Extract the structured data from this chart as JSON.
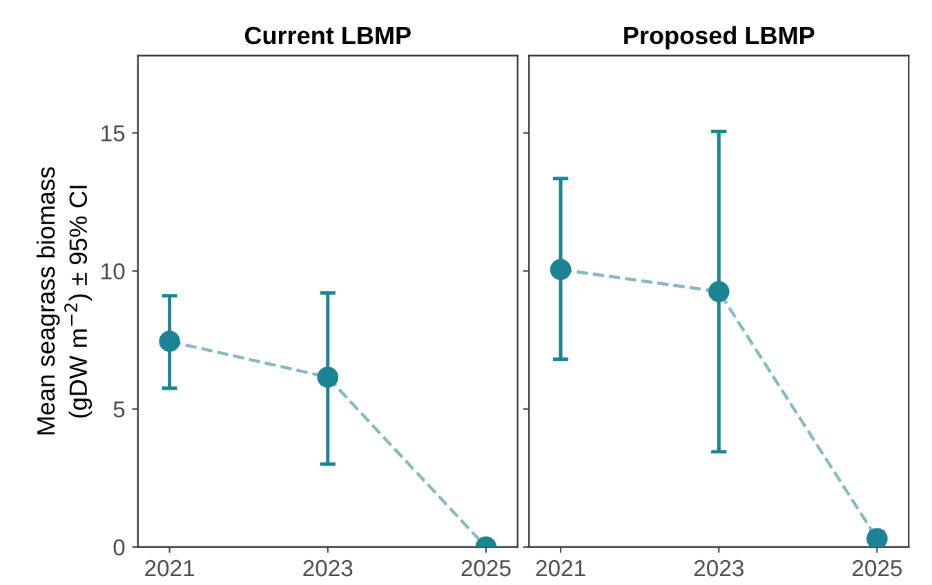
{
  "chart_data": [
    {
      "type": "line",
      "title": "Current LBMP",
      "ylabel": "Mean seagrass biomass\n(gDW m$^{−2}$) ± 95% CI",
      "x": [
        2021,
        2023,
        2025
      ],
      "xlim": [
        2020.6,
        2025.4
      ],
      "xticks": [
        2021,
        2023,
        2025
      ],
      "ylim": [
        0,
        17.8
      ],
      "yticks": [
        0,
        5,
        10,
        15
      ],
      "marker": "circle",
      "line_style": "dashed",
      "grid": false,
      "legend": false,
      "series": [
        {
          "color": "#1b8394",
          "values": [
            7.45,
            6.15,
            0.0
          ],
          "errors": [
            [
              5.75,
              9.1
            ],
            [
              3.0,
              9.2
            ],
            null
          ]
        }
      ]
    },
    {
      "type": "line",
      "title": "Proposed LBMP",
      "x": [
        2021,
        2023,
        2025
      ],
      "xlim": [
        2020.6,
        2025.4
      ],
      "xticks": [
        2021,
        2023,
        2025
      ],
      "ylim": [
        0,
        17.8
      ],
      "yticks": [
        0,
        5,
        10,
        15
      ],
      "tick_labels": "x",
      "marker": "circle",
      "line_style": "dashed",
      "grid": false,
      "legend": false,
      "series": [
        {
          "color": "#1b8394",
          "values": [
            10.05,
            9.25,
            0.3
          ],
          "errors": [
            [
              6.8,
              13.35
            ],
            [
              3.45,
              15.05
            ],
            [
              0.1,
              0.55
            ]
          ]
        }
      ]
    }
  ]
}
